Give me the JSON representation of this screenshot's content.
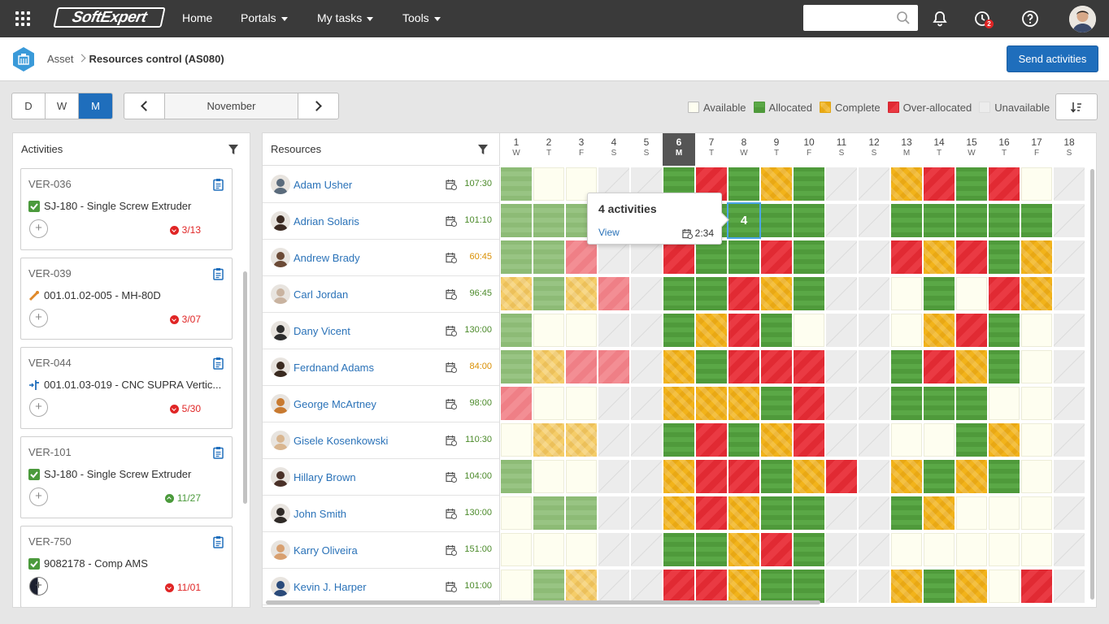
{
  "topbar": {
    "logo": "SoftExpert",
    "nav": [
      {
        "label": "Home",
        "dropdown": false
      },
      {
        "label": "Portals",
        "dropdown": true
      },
      {
        "label": "My tasks",
        "dropdown": true
      },
      {
        "label": "Tools",
        "dropdown": true
      }
    ],
    "search_placeholder": "",
    "notification_badge": "2"
  },
  "header": {
    "breadcrumb_root": "Asset",
    "breadcrumb_current": "Resources control (AS080)",
    "send_button": "Send activities"
  },
  "view_modes": [
    {
      "label": "D",
      "active": false
    },
    {
      "label": "W",
      "active": false
    },
    {
      "label": "M",
      "active": true
    }
  ],
  "month": "November",
  "legend": [
    {
      "label": "Available",
      "color": "#fefef0"
    },
    {
      "label": "Allocated",
      "color": "#55a143"
    },
    {
      "label": "Complete",
      "color": "#f2b31a"
    },
    {
      "label": "Over-allocated",
      "color": "#e12a33"
    },
    {
      "label": "Unavailable",
      "color": "#ececec"
    }
  ],
  "activities": {
    "title": "Activities",
    "items": [
      {
        "code": "VER-036",
        "icon": "check-icon",
        "name": "SJ-180 - Single Screw Extruder",
        "due": "3/13",
        "status": "late"
      },
      {
        "code": "VER-039",
        "icon": "tool-icon",
        "name": "001.01.02-005 - MH-80D",
        "due": "3/07",
        "status": "late"
      },
      {
        "code": "VER-044",
        "icon": "branch-icon",
        "name": "001.01.03-019 - CNC SUPRA Vertic...",
        "due": "5/30",
        "status": "late"
      },
      {
        "code": "VER-101",
        "icon": "check-icon",
        "name": "SJ-180 - Single Screw Extruder",
        "due": "11/27",
        "status": "ontime"
      },
      {
        "code": "VER-750",
        "icon": "check-icon",
        "name": "9082178 - Comp AMS",
        "due": "11/01",
        "status": "late"
      }
    ]
  },
  "resources": {
    "title": "Resources",
    "days": [
      {
        "num": "1",
        "dow": "W"
      },
      {
        "num": "2",
        "dow": "T"
      },
      {
        "num": "3",
        "dow": "F"
      },
      {
        "num": "4",
        "dow": "S"
      },
      {
        "num": "5",
        "dow": "S"
      },
      {
        "num": "6",
        "dow": "M",
        "today": true
      },
      {
        "num": "7",
        "dow": "T"
      },
      {
        "num": "8",
        "dow": "W"
      },
      {
        "num": "9",
        "dow": "T"
      },
      {
        "num": "10",
        "dow": "F"
      },
      {
        "num": "11",
        "dow": "S"
      },
      {
        "num": "12",
        "dow": "S"
      },
      {
        "num": "13",
        "dow": "M"
      },
      {
        "num": "14",
        "dow": "T"
      },
      {
        "num": "15",
        "dow": "W"
      },
      {
        "num": "16",
        "dow": "T"
      },
      {
        "num": "17",
        "dow": "F"
      },
      {
        "num": "18",
        "dow": "S"
      }
    ],
    "rows": [
      {
        "name": "Adam Usher",
        "hours": "107:30",
        "hours_color": "#4b8a2a",
        "avatar_color": "#5a6b7c",
        "cells": [
          "alc-light",
          "avl",
          "avl",
          "unavl",
          "unavl",
          "alc",
          "over",
          "alc",
          "comp",
          "alc",
          "unavl",
          "unavl",
          "comp",
          "over",
          "alc",
          "over",
          "avl",
          "unavl"
        ]
      },
      {
        "name": "Adrian Solaris",
        "hours": "101:10",
        "hours_color": "#4b8a2a",
        "avatar_color": "#3b2a22",
        "cells": [
          "alc-light",
          "alc-light",
          "alc-light",
          "unavl",
          "unavl",
          "alc",
          "alc",
          "sel",
          "alc",
          "alc",
          "unavl",
          "unavl",
          "alc",
          "alc",
          "alc",
          "alc",
          "alc",
          "unavl"
        ]
      },
      {
        "name": "Andrew Brady",
        "hours": "60:45",
        "hours_color": "#d98e00",
        "avatar_color": "#6b4a36",
        "cells": [
          "alc-light",
          "alc-light",
          "over-light",
          "unavl",
          "unavl",
          "over",
          "alc",
          "alc",
          "over",
          "alc",
          "unavl",
          "unavl",
          "over",
          "comp",
          "over",
          "alc",
          "comp",
          "unavl"
        ]
      },
      {
        "name": "Carl Jordan",
        "hours": "96:45",
        "hours_color": "#4b8a2a",
        "avatar_color": "#c9b3a0",
        "cells": [
          "comp-light",
          "alc-light",
          "comp-light",
          "over-light",
          "unavl",
          "alc",
          "alc",
          "over",
          "comp",
          "alc",
          "unavl",
          "unavl",
          "avl",
          "alc",
          "avl",
          "over",
          "comp",
          "unavl"
        ]
      },
      {
        "name": "Dany Vicent",
        "hours": "130:00",
        "hours_color": "#4b8a2a",
        "avatar_color": "#2d2d2d",
        "cells": [
          "alc-light",
          "avl",
          "avl",
          "unavl",
          "unavl",
          "alc",
          "comp",
          "over",
          "alc",
          "avl",
          "unavl",
          "unavl",
          "avl",
          "comp",
          "over",
          "alc",
          "avl",
          "unavl"
        ]
      },
      {
        "name": "Ferdnand Adams",
        "hours": "84:00",
        "hours_color": "#d98e00",
        "avatar_color": "#3a2a20",
        "cells": [
          "alc-light",
          "comp-light",
          "over-light",
          "over-light",
          "unavl",
          "comp",
          "alc",
          "over",
          "over",
          "over",
          "unavl",
          "unavl",
          "alc",
          "over",
          "comp",
          "alc",
          "avl",
          "unavl"
        ]
      },
      {
        "name": "George McArtney",
        "hours": "98:00",
        "hours_color": "#4b8a2a",
        "avatar_color": "#c87a30",
        "cells": [
          "over-light",
          "avl",
          "avl",
          "unavl",
          "unavl",
          "comp",
          "comp",
          "comp",
          "alc",
          "over",
          "unavl",
          "unavl",
          "alc",
          "alc",
          "alc",
          "avl",
          "avl",
          "unavl"
        ]
      },
      {
        "name": "Gisele Kosenkowski",
        "hours": "110:30",
        "hours_color": "#4b8a2a",
        "avatar_color": "#d9b690",
        "cells": [
          "avl",
          "comp-light",
          "comp-light",
          "unavl",
          "unavl",
          "alc",
          "over",
          "alc",
          "comp",
          "over",
          "unavl",
          "unavl",
          "avl",
          "avl",
          "alc",
          "comp",
          "avl",
          "unavl"
        ]
      },
      {
        "name": "Hillary Brown",
        "hours": "104:00",
        "hours_color": "#4b8a2a",
        "avatar_color": "#4a3128",
        "cells": [
          "alc-light",
          "avl",
          "avl",
          "unavl",
          "unavl",
          "comp",
          "over",
          "over",
          "alc",
          "comp",
          "over",
          "unavl",
          "comp",
          "alc",
          "comp",
          "alc",
          "avl",
          "unavl"
        ]
      },
      {
        "name": "John Smith",
        "hours": "130:00",
        "hours_color": "#4b8a2a",
        "avatar_color": "#2f2a27",
        "cells": [
          "avl",
          "alc-light",
          "alc-light",
          "unavl",
          "unavl",
          "comp",
          "over",
          "comp",
          "alc",
          "alc",
          "unavl",
          "unavl",
          "alc",
          "comp",
          "avl",
          "avl",
          "avl",
          "unavl"
        ]
      },
      {
        "name": "Karry Oliveira",
        "hours": "151:00",
        "hours_color": "#4b8a2a",
        "avatar_color": "#d8a070",
        "cells": [
          "avl",
          "avl",
          "avl",
          "unavl",
          "unavl",
          "alc",
          "alc",
          "comp",
          "over",
          "alc",
          "unavl",
          "unavl",
          "avl",
          "avl",
          "avl",
          "avl",
          "avl",
          "unavl"
        ]
      },
      {
        "name": "Kevin J. Harper",
        "hours": "101:00",
        "hours_color": "#4b8a2a",
        "avatar_color": "#2a4a7a",
        "cells": [
          "avl",
          "alc-light",
          "comp-light",
          "unavl",
          "unavl",
          "over",
          "over",
          "comp",
          "alc",
          "alc",
          "unavl",
          "unavl",
          "comp",
          "alc",
          "comp",
          "avl",
          "over",
          "unavl"
        ]
      }
    ]
  },
  "tooltip": {
    "title": "4 activities",
    "view_link": "View",
    "time": "2:34",
    "selected_count": "4"
  }
}
